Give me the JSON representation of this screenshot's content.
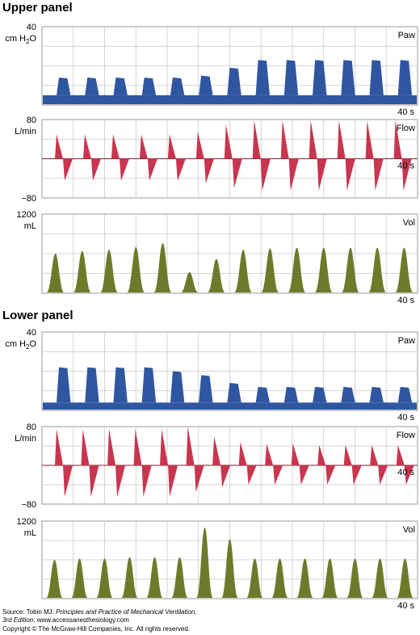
{
  "upper_title": "Upper panel",
  "lower_title": "Lower panel",
  "source": {
    "prefix": "Source: Tobin MJ: ",
    "book": "Principles and Practice of Mechanical Ventilation,",
    "edition": "3rd Edition",
    "url": ": www.accessanesthesiology.com",
    "copyright": "Copyright © The McGraw-Hill Companies, Inc. All rights reserved."
  },
  "colors": {
    "paw": "#2f56a0",
    "flow": "#c9354e",
    "vol": "#6e7a2a",
    "grid": "#c8c8c8",
    "frame": "#9a9a9a"
  },
  "chart_data": [
    {
      "panel": "Upper panel",
      "channel": "Paw",
      "type": "area",
      "units_line1": "40",
      "units_line2": "cm H2O",
      "time_label": "40 s",
      "ylim": [
        0,
        40
      ],
      "xlim": [
        0,
        40
      ],
      "peaks": [
        14,
        14,
        14,
        14,
        14,
        15,
        19,
        23,
        23,
        23,
        23,
        23,
        23
      ],
      "baseline": 5
    },
    {
      "panel": "Upper panel",
      "channel": "Flow",
      "type": "line",
      "units_line1": "80",
      "units_line2": "L/min",
      "bottom_label": "−80",
      "time_label": "40 s",
      "ylim": [
        -80,
        80
      ],
      "xlim": [
        0,
        40
      ],
      "insp_peaks": [
        50,
        50,
        50,
        50,
        50,
        55,
        70,
        78,
        78,
        78,
        78,
        78,
        78
      ],
      "exp_peaks": [
        -45,
        -45,
        -45,
        -45,
        -45,
        -50,
        -60,
        -65,
        -65,
        -65,
        -65,
        -65,
        -65
      ]
    },
    {
      "panel": "Upper panel",
      "channel": "Vol",
      "type": "area",
      "units_line1": "1200",
      "units_line2": "mL",
      "time_label": "40 s",
      "ylim": [
        0,
        1200
      ],
      "xlim": [
        0,
        40
      ],
      "peaks": [
        600,
        640,
        660,
        700,
        760,
        320,
        520,
        660,
        680,
        690,
        690,
        690,
        690,
        690
      ]
    },
    {
      "panel": "Lower panel",
      "channel": "Paw",
      "type": "area",
      "units_line1": "40",
      "units_line2": "cm H2O",
      "time_label": "40 s",
      "ylim": [
        0,
        40
      ],
      "xlim": [
        0,
        40
      ],
      "peaks": [
        22,
        22,
        22,
        22,
        20,
        18,
        14,
        12,
        12,
        12,
        12,
        12,
        12
      ],
      "baseline": 4
    },
    {
      "panel": "Lower panel",
      "channel": "Flow",
      "type": "line",
      "units_line1": "80",
      "units_line2": "L/min",
      "bottom_label": "−80",
      "time_label": "40 s",
      "ylim": [
        -80,
        80
      ],
      "xlim": [
        0,
        40
      ],
      "insp_peaks": [
        75,
        75,
        75,
        75,
        75,
        80,
        60,
        48,
        45,
        45,
        42,
        42,
        42,
        42
      ],
      "exp_peaks": [
        -65,
        -65,
        -65,
        -65,
        -65,
        -55,
        -45,
        -40,
        -40,
        -40,
        -40,
        -40,
        -40,
        -40
      ]
    },
    {
      "panel": "Lower panel",
      "channel": "Vol",
      "type": "area",
      "units_line1": "1200",
      "units_line2": "mL",
      "time_label": "40 s",
      "ylim": [
        0,
        1200
      ],
      "xlim": [
        0,
        40
      ],
      "peaks": [
        600,
        620,
        620,
        640,
        640,
        640,
        1100,
        920,
        620,
        620,
        620,
        620,
        620,
        620,
        620
      ]
    }
  ]
}
